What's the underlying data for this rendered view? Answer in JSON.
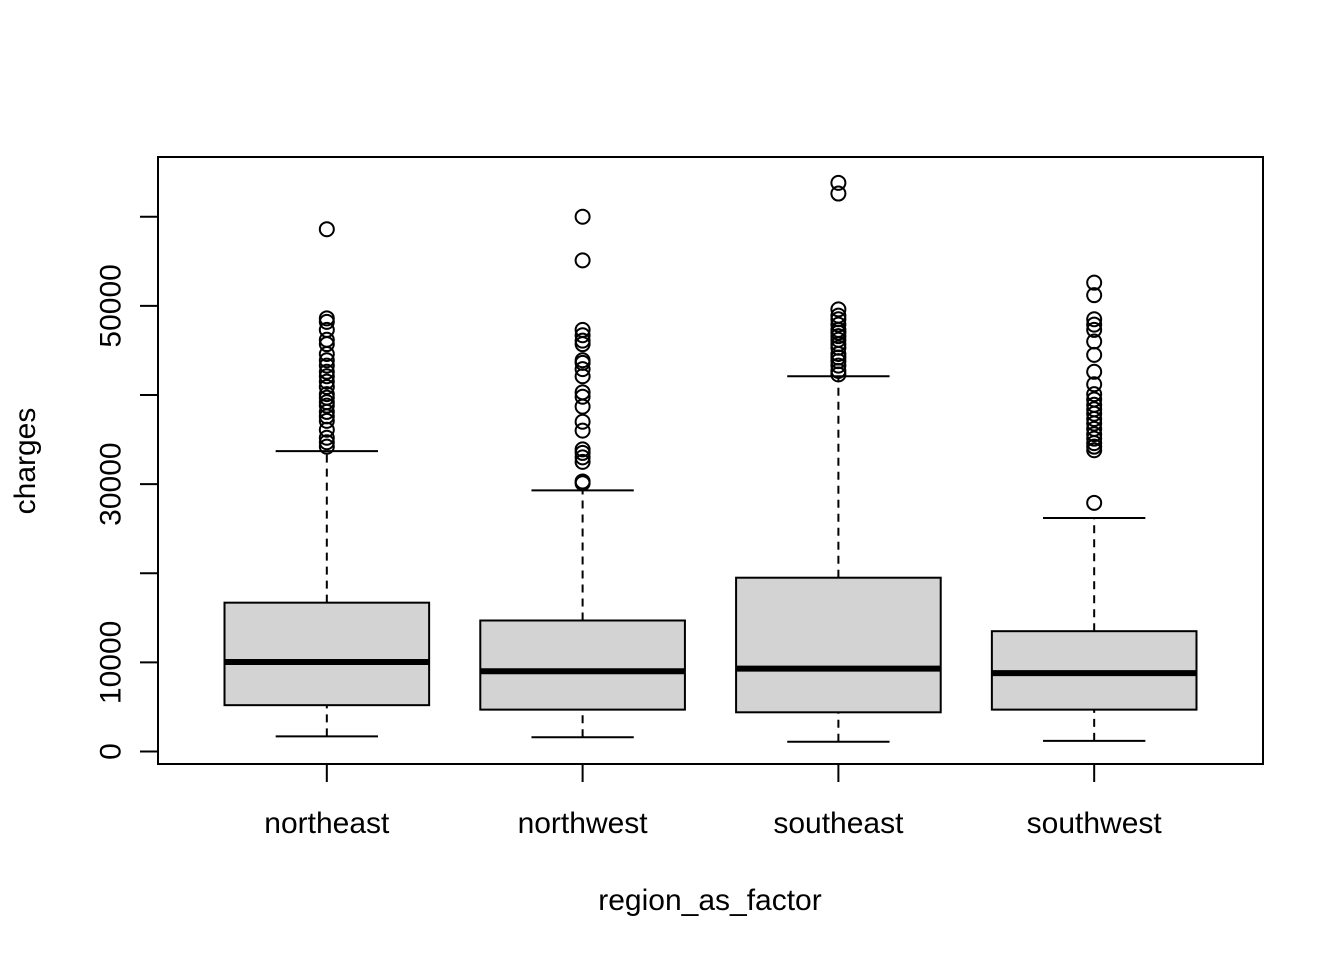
{
  "chart_data": {
    "type": "boxplot",
    "xlabel": "region_as_factor",
    "ylabel": "charges",
    "ylim": [
      -1400,
      66700
    ],
    "y_ticks": [
      0,
      10000,
      20000,
      30000,
      40000,
      50000,
      60000
    ],
    "y_tick_labels": [
      "0",
      "10000",
      "",
      "30000",
      "",
      "50000",
      ""
    ],
    "categories": [
      "northeast",
      "northwest",
      "southeast",
      "southwest"
    ],
    "boxes": [
      {
        "name": "northeast",
        "whisker_low": 1700,
        "q1": 5200,
        "median": 10050,
        "q3": 16700,
        "whisker_high": 33700,
        "outliers": [
          34200,
          34700,
          35200,
          36100,
          37100,
          37600,
          38100,
          38800,
          39200,
          39700,
          40100,
          40900,
          41500,
          42100,
          42600,
          43300,
          43900,
          44600,
          45700,
          46200,
          47300,
          48200,
          48600,
          58600
        ]
      },
      {
        "name": "northwest",
        "whisker_low": 1600,
        "q1": 4700,
        "median": 9000,
        "q3": 14700,
        "whisker_high": 29300,
        "outliers": [
          30100,
          30300,
          32500,
          33000,
          33500,
          33900,
          36000,
          37000,
          38700,
          39800,
          40300,
          42100,
          42900,
          43600,
          43900,
          45700,
          46100,
          46700,
          47300,
          55100,
          60000
        ]
      },
      {
        "name": "southeast",
        "whisker_low": 1100,
        "q1": 4400,
        "median": 9300,
        "q3": 19500,
        "whisker_high": 42100,
        "outliers": [
          42300,
          42700,
          43300,
          43800,
          44200,
          44600,
          45300,
          45700,
          46200,
          46600,
          47000,
          47300,
          47900,
          48500,
          48900,
          49600,
          62600,
          63800
        ]
      },
      {
        "name": "southwest",
        "whisker_low": 1200,
        "q1": 4700,
        "median": 8800,
        "q3": 13500,
        "whisker_high": 26200,
        "outliers": [
          27900,
          33800,
          34200,
          34600,
          35100,
          35600,
          36200,
          36800,
          37300,
          37900,
          38400,
          38900,
          39500,
          40100,
          41200,
          42600,
          44500,
          46000,
          47300,
          47900,
          48500,
          51200,
          52600
        ]
      }
    ],
    "grid": false,
    "legend": "none"
  }
}
